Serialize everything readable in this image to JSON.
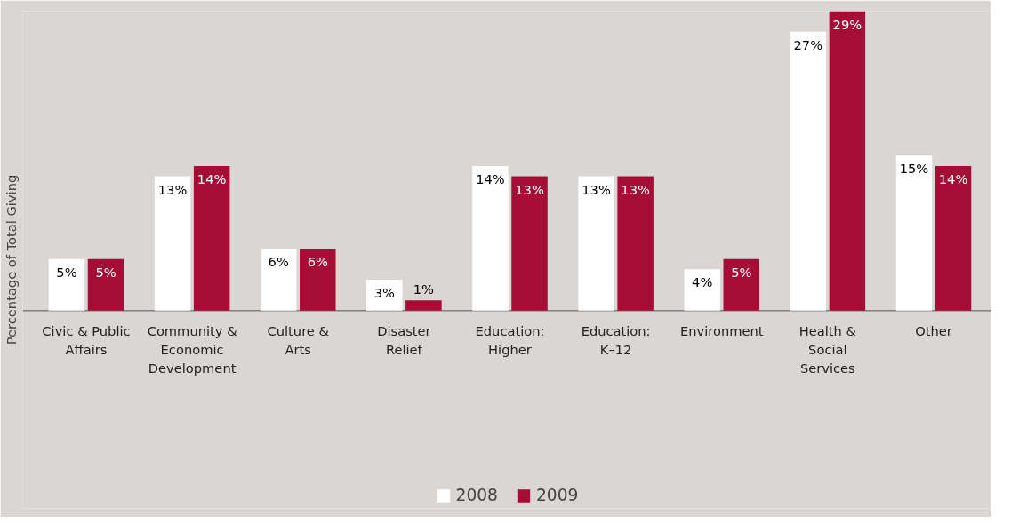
{
  "chart_data": {
    "type": "bar",
    "ylabel": "Percentage of Total Giving",
    "categories": [
      "Civic & Public\nAffairs",
      "Community &\nEconomic\nDevelopment",
      "Culture &\nArts",
      "Disaster\nRelief",
      "Education:\nHigher",
      "Education:\nK–12",
      "Environment",
      "Health &\nSocial\nServices",
      "Other"
    ],
    "series": [
      {
        "name": "2008",
        "color": "#ffffff",
        "values": [
          5,
          13,
          6,
          3,
          14,
          13,
          4,
          27,
          15
        ],
        "value_labels": [
          "5%",
          "13%",
          "6%",
          "3%",
          "14%",
          "13%",
          "4%",
          "27%",
          "15%"
        ]
      },
      {
        "name": "2009",
        "color": "#a50d36",
        "values": [
          5,
          14,
          6,
          1,
          13,
          13,
          5,
          29,
          14
        ],
        "value_labels": [
          "5%",
          "14%",
          "6%",
          "1%",
          "13%",
          "13%",
          "5%",
          "29%",
          "14%"
        ]
      }
    ],
    "legend": "bottom"
  }
}
